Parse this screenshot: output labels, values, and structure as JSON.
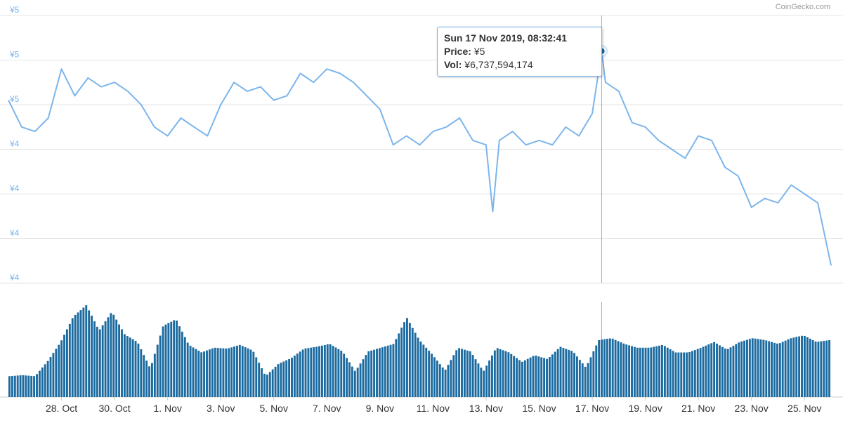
{
  "credit": "CoinGecko.com",
  "tooltip": {
    "date": "Sun 17 Nov 2019, 08:32:41",
    "price_label": "Price:",
    "price_value": "¥5",
    "vol_label": "Vol:",
    "vol_value": "¥6,737,594,174"
  },
  "colors": {
    "line": "#7cb5ec",
    "bar": "#1c6ba0",
    "axis_text": "#7cb5ec",
    "grid": "#e6e6e6"
  },
  "chart_data": {
    "type": "line",
    "title": "",
    "xlabel": "",
    "ylabel": "",
    "x_ticks": [
      "28. Oct",
      "30. Oct",
      "1. Nov",
      "3. Nov",
      "5. Nov",
      "7. Nov",
      "9. Nov",
      "11. Nov",
      "13. Nov",
      "15. Nov",
      "17. Nov",
      "19. Nov",
      "21. Nov",
      "23. Nov",
      "25. Nov"
    ],
    "y_ticks": [
      "¥5",
      "¥5",
      "¥5",
      "¥4",
      "¥4",
      "¥4",
      "¥4"
    ],
    "ylim": [
      4.7,
      5.3
    ],
    "x_range": [
      "2019-10-26",
      "2019-11-26"
    ],
    "grid": true,
    "highlight": {
      "x": "2019-11-17 08:32",
      "y": 5.22
    },
    "series": [
      {
        "x": [
          "2019-10-26",
          "2019-10-26 12:00",
          "2019-10-27",
          "2019-10-27 12:00",
          "2019-10-28",
          "2019-10-28 12:00",
          "2019-10-29",
          "2019-10-29 12:00",
          "2019-10-30",
          "2019-10-30 12:00",
          "2019-10-31",
          "2019-10-31 12:00",
          "2019-11-01",
          "2019-11-01 12:00",
          "2019-11-02",
          "2019-11-02 12:00",
          "2019-11-03",
          "2019-11-03 12:00",
          "2019-11-04",
          "2019-11-04 12:00",
          "2019-11-05",
          "2019-11-05 12:00",
          "2019-11-06",
          "2019-11-06 12:00",
          "2019-11-07",
          "2019-11-07 12:00",
          "2019-11-08",
          "2019-11-08 12:00",
          "2019-11-09",
          "2019-11-09 12:00",
          "2019-11-10",
          "2019-11-10 12:00",
          "2019-11-11",
          "2019-11-11 12:00",
          "2019-11-12",
          "2019-11-12 12:00",
          "2019-11-13",
          "2019-11-13 06:00",
          "2019-11-13 12:00",
          "2019-11-14",
          "2019-11-14 12:00",
          "2019-11-15",
          "2019-11-15 12:00",
          "2019-11-16",
          "2019-11-16 12:00",
          "2019-11-17",
          "2019-11-17 08:32",
          "2019-11-17 12:00",
          "2019-11-18",
          "2019-11-18 12:00",
          "2019-11-19",
          "2019-11-19 12:00",
          "2019-11-20",
          "2019-11-20 12:00",
          "2019-11-21",
          "2019-11-21 12:00",
          "2019-11-22",
          "2019-11-22 12:00",
          "2019-11-23",
          "2019-11-23 12:00",
          "2019-11-24",
          "2019-11-24 12:00",
          "2019-11-25",
          "2019-11-25 12:00",
          "2019-11-26"
        ],
        "values": [
          5.11,
          5.05,
          5.04,
          5.07,
          5.18,
          5.12,
          5.16,
          5.14,
          5.15,
          5.13,
          5.1,
          5.05,
          5.03,
          5.07,
          5.05,
          5.03,
          5.1,
          5.15,
          5.13,
          5.14,
          5.11,
          5.12,
          5.17,
          5.15,
          5.18,
          5.17,
          5.15,
          5.12,
          5.09,
          5.01,
          5.03,
          5.01,
          5.04,
          5.05,
          5.07,
          5.02,
          5.01,
          4.86,
          5.02,
          5.04,
          5.01,
          5.02,
          5.01,
          5.05,
          5.03,
          5.08,
          5.22,
          5.15,
          5.13,
          5.06,
          5.05,
          5.02,
          5.0,
          4.98,
          5.03,
          5.02,
          4.96,
          4.94,
          4.87,
          4.89,
          4.88,
          4.92,
          4.9,
          4.88,
          4.74
        ]
      }
    ],
    "volume": {
      "values": [
        0.22,
        0.23,
        0.22,
        0.38,
        0.58,
        0.85,
        0.97,
        0.7,
        0.9,
        0.66,
        0.58,
        0.3,
        0.75,
        0.82,
        0.55,
        0.47,
        0.52,
        0.51,
        0.55,
        0.49,
        0.22,
        0.35,
        0.41,
        0.51,
        0.53,
        0.56,
        0.48,
        0.27,
        0.48,
        0.52,
        0.56,
        0.84,
        0.6,
        0.45,
        0.28,
        0.52,
        0.48,
        0.27,
        0.52,
        0.47,
        0.37,
        0.44,
        0.4,
        0.53,
        0.48,
        0.31,
        0.6,
        0.62,
        0.56,
        0.52,
        0.52,
        0.55,
        0.47,
        0.47,
        0.52,
        0.58,
        0.5,
        0.58,
        0.62,
        0.6,
        0.56,
        0.62,
        0.65,
        0.58,
        0.6
      ]
    }
  }
}
